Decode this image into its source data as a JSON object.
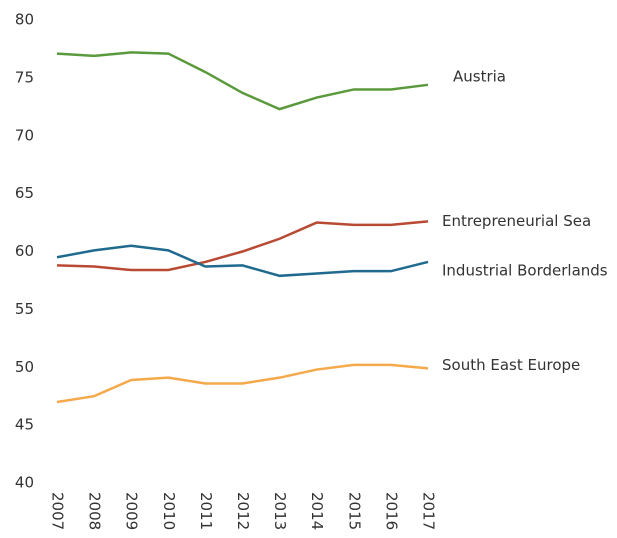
{
  "chart_data": {
    "type": "line",
    "x": [
      "2007",
      "2008",
      "2009",
      "2010",
      "2011",
      "2012",
      "2013",
      "2014",
      "2015",
      "2016",
      "2017"
    ],
    "series": [
      {
        "name": "Austria",
        "color": "#5a9a3c",
        "values": [
          77.1,
          76.9,
          77.2,
          77.1,
          75.5,
          73.7,
          72.3,
          73.3,
          74.0,
          74.0,
          74.4
        ]
      },
      {
        "name": "Entrepreneurial Sea",
        "color": "#b84a33",
        "values": [
          58.8,
          58.7,
          58.4,
          58.4,
          59.1,
          60.0,
          61.1,
          62.5,
          62.3,
          62.3,
          62.6
        ]
      },
      {
        "name": "Industrial Borderlands",
        "color": "#1f6a8e",
        "values": [
          59.5,
          60.1,
          60.5,
          60.1,
          58.7,
          58.8,
          57.9,
          58.1,
          58.3,
          58.3,
          59.1
        ]
      },
      {
        "name": "South East Europe",
        "color": "#f5a94a",
        "values": [
          47.0,
          47.5,
          48.9,
          49.1,
          48.6,
          48.6,
          49.1,
          49.8,
          50.2,
          50.2,
          49.9
        ]
      }
    ],
    "ylim": [
      40,
      80
    ],
    "yticks": [
      40,
      45,
      50,
      55,
      60,
      65,
      70,
      75,
      80
    ]
  }
}
